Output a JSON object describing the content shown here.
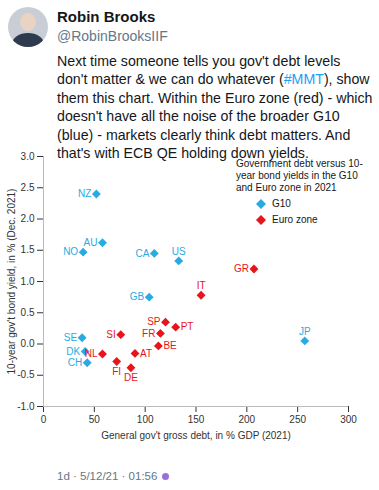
{
  "tweet": {
    "author": "Robin Brooks",
    "handle": "@RobinBrooksIIF",
    "text": "Next time someone tells you gov't debt levels don't matter & we can do whatever (#MMT), show them this chart. Within the Euro zone (red) - which doesn't have all the noise of the broader G10 (blue) - markets clearly think debt matters. And that's with ECB QE holding down yields.",
    "footer": "1d · 5/12/21 · 01:56"
  },
  "chart_data": {
    "type": "scatter",
    "title": "Government debt versus 10-year bond yields in the G10 and Euro zone in 2021",
    "x_label": "General gov't gross debt, in % GDP (2021)",
    "y_label": "10-year gov't bond yield, in % (Dec. 2021)",
    "xlim": [
      0,
      300
    ],
    "xticks": [
      0,
      50,
      100,
      150,
      200,
      250,
      300
    ],
    "ylim": [
      -1,
      3
    ],
    "yticks": [
      {
        "value": -1,
        "label": "-1.0"
      },
      {
        "value": -0.5,
        "label": "-0.5"
      },
      {
        "value": 0,
        "label": "0.0"
      },
      {
        "value": 0.5,
        "label": "0.5"
      },
      {
        "value": 1,
        "label": "1.0"
      },
      {
        "value": 1.5,
        "label": "1.5"
      },
      {
        "value": 2,
        "label": "2.0"
      },
      {
        "value": 2.5,
        "label": "2.5"
      },
      {
        "value": 3,
        "label": "3.0"
      }
    ],
    "grid": false,
    "legend": "top-right",
    "series": [
      {
        "name": "G10",
        "color": "#29abe2",
        "marker": "diamond",
        "labels": [
          "NZ",
          "NO",
          "AU",
          "CA",
          "US",
          "GB",
          "JP",
          "SE",
          "DK",
          "CH"
        ],
        "x": [
          52,
          39,
          58,
          109,
          133,
          104,
          257,
          38,
          41,
          43
        ],
        "values": [
          2.4,
          1.47,
          1.62,
          1.45,
          1.33,
          0.75,
          0.05,
          0.1,
          -0.12,
          -0.3
        ]
      },
      {
        "name": "Euro zone",
        "color": "#e8141b",
        "marker": "diamond",
        "labels": [
          "GR",
          "IT",
          "SI",
          "SP",
          "FR",
          "PT",
          "NL",
          "FI",
          "AT",
          "DE",
          "BE"
        ],
        "x": [
          207,
          155,
          76,
          120,
          115,
          130,
          58,
          72,
          90,
          86,
          113
        ],
        "values": [
          1.2,
          0.78,
          0.15,
          0.35,
          0.17,
          0.27,
          -0.16,
          -0.28,
          -0.15,
          -0.38,
          -0.03
        ]
      }
    ]
  }
}
